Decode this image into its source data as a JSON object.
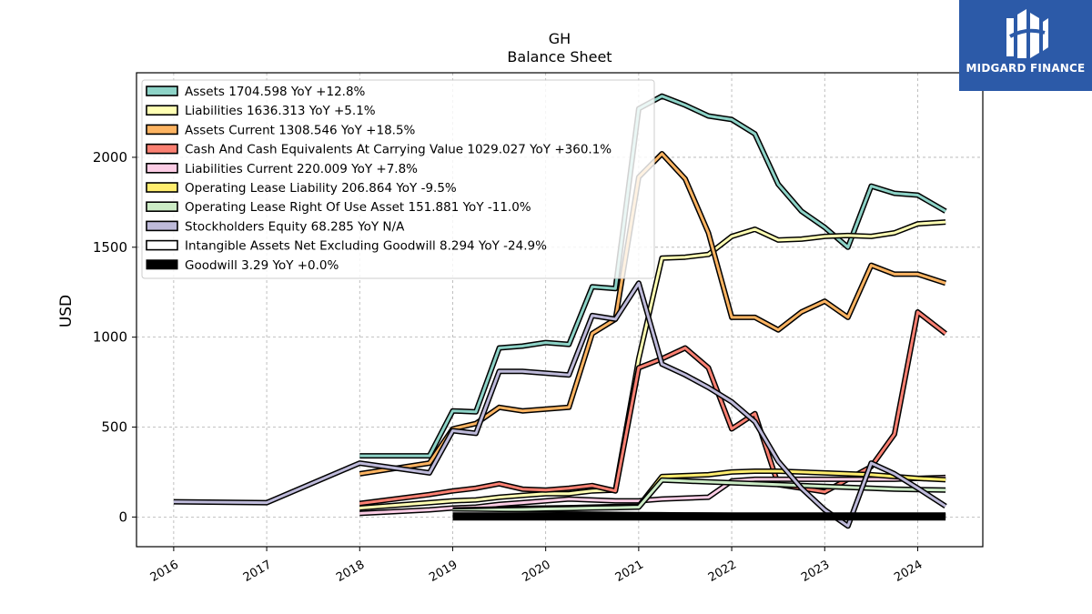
{
  "brand": {
    "name": "MIDGARD FINANCE"
  },
  "chart_data": {
    "type": "line",
    "title": "GH",
    "subtitle": "Balance  Sheet",
    "xlabel": "",
    "ylabel": "USD",
    "xlim": [
      2015.6,
      2024.7
    ],
    "ylim": [
      -165,
      2470
    ],
    "x_ticks": [
      2016,
      2017,
      2018,
      2019,
      2020,
      2021,
      2022,
      2023,
      2024
    ],
    "x_tick_labels": [
      "2016",
      "2017",
      "2018",
      "2019",
      "2020",
      "2021",
      "2022",
      "2023",
      "2024"
    ],
    "y_ticks": [
      0,
      500,
      1000,
      1500,
      2000
    ],
    "y_tick_labels": [
      "0",
      "500",
      "1000",
      "1500",
      "2000"
    ],
    "grid": true,
    "legend_position": "top-left",
    "series": [
      {
        "name": "Assets",
        "legend": "Assets  1704.598 YoY +12.8%",
        "color": "#8dd3c7",
        "width": 3,
        "x": [
          2018.0,
          2018.75,
          2019.0,
          2019.25,
          2019.5,
          2019.75,
          2020.0,
          2020.25,
          2020.5,
          2020.75,
          2021.0,
          2021.25,
          2021.5,
          2021.75,
          2022.0,
          2022.25,
          2022.5,
          2022.75,
          2023.0,
          2023.25,
          2023.5,
          2023.75,
          2024.0,
          2024.3
        ],
        "y": [
          340,
          340,
          590,
          585,
          940,
          950,
          970,
          960,
          1280,
          1270,
          2270,
          2340,
          2290,
          2230,
          2210,
          2130,
          1850,
          1700,
          1610,
          1500,
          1840,
          1800,
          1790,
          1700
        ]
      },
      {
        "name": "Liabilities",
        "legend": "Liabilities  1636.313 YoY +5.1%",
        "color": "#ffffb3",
        "width": 3,
        "x": [
          2018.0,
          2018.75,
          2019.0,
          2019.25,
          2019.5,
          2019.75,
          2020.0,
          2020.25,
          2020.5,
          2020.75,
          2021.0,
          2021.25,
          2021.5,
          2021.75,
          2022.0,
          2022.25,
          2022.5,
          2022.75,
          2023.0,
          2023.25,
          2023.5,
          2023.75,
          2024.0,
          2024.3
        ],
        "y": [
          50,
          80,
          90,
          95,
          110,
          120,
          130,
          130,
          145,
          150,
          880,
          1440,
          1445,
          1460,
          1560,
          1600,
          1540,
          1545,
          1560,
          1565,
          1560,
          1580,
          1630,
          1640
        ]
      },
      {
        "name": "Assets Current",
        "legend": "Assets Current  1308.546 YoY +18.5%",
        "color": "#fdb462",
        "width": 3,
        "x": [
          2018.0,
          2018.75,
          2019.0,
          2019.25,
          2019.5,
          2019.75,
          2020.0,
          2020.25,
          2020.5,
          2020.75,
          2021.0,
          2021.25,
          2021.5,
          2021.75,
          2022.0,
          2022.25,
          2022.5,
          2022.75,
          2023.0,
          2023.25,
          2023.5,
          2023.75,
          2024.0,
          2024.3
        ],
        "y": [
          240,
          300,
          490,
          520,
          610,
          590,
          600,
          610,
          1020,
          1100,
          1890,
          2020,
          1880,
          1580,
          1110,
          1110,
          1040,
          1140,
          1200,
          1110,
          1400,
          1350,
          1350,
          1300
        ]
      },
      {
        "name": "Cash And Cash Equivalents At Carrying Value",
        "legend": "Cash And Cash Equivalents At Carrying Value  1029.027 YoY +360.1%",
        "color": "#fb8072",
        "width": 3,
        "x": [
          2018.0,
          2018.75,
          2019.0,
          2019.25,
          2019.5,
          2019.75,
          2020.0,
          2020.25,
          2020.5,
          2020.75,
          2021.0,
          2021.25,
          2021.5,
          2021.75,
          2022.0,
          2022.25,
          2022.5,
          2022.75,
          2023.0,
          2023.25,
          2023.5,
          2023.75,
          2024.0,
          2024.3
        ],
        "y": [
          75,
          125,
          145,
          160,
          185,
          155,
          150,
          160,
          175,
          145,
          830,
          880,
          940,
          830,
          490,
          575,
          180,
          160,
          140,
          210,
          280,
          460,
          1140,
          1020
        ]
      },
      {
        "name": "Liabilities Current",
        "legend": "Liabilities Current  220.009 YoY +7.8%",
        "color": "#fccde5",
        "width": 3,
        "x": [
          2018.0,
          2018.75,
          2019.0,
          2019.25,
          2019.5,
          2019.75,
          2020.0,
          2020.25,
          2020.5,
          2020.75,
          2021.0,
          2021.25,
          2021.5,
          2021.75,
          2022.0,
          2022.25,
          2022.5,
          2022.75,
          2023.0,
          2023.25,
          2023.5,
          2023.75,
          2024.0,
          2024.3
        ],
        "y": [
          20,
          40,
          50,
          55,
          70,
          80,
          90,
          100,
          95,
          90,
          90,
          100,
          105,
          110,
          200,
          210,
          210,
          210,
          210,
          210,
          210,
          210,
          215,
          220
        ]
      },
      {
        "name": "Operating Lease Liability",
        "legend": "Operating Lease Liability  206.864 YoY -9.5%",
        "color": "#ffed6f",
        "width": 3,
        "x": [
          2019.0,
          2019.25,
          2019.5,
          2019.75,
          2020.0,
          2020.25,
          2020.5,
          2020.75,
          2021.0,
          2021.25,
          2021.5,
          2021.75,
          2022.0,
          2022.25,
          2022.5,
          2022.75,
          2023.0,
          2023.25,
          2023.5,
          2023.75,
          2024.0,
          2024.3
        ],
        "y": [
          40,
          42,
          45,
          48,
          50,
          52,
          55,
          58,
          60,
          225,
          230,
          235,
          250,
          255,
          255,
          250,
          245,
          240,
          235,
          225,
          215,
          207
        ]
      },
      {
        "name": "Operating Lease Right Of Use Asset",
        "legend": "Operating Lease Right Of Use Asset  151.881 YoY -11.0%",
        "color": "#ccebc5",
        "width": 3,
        "x": [
          2019.0,
          2019.25,
          2019.5,
          2019.75,
          2020.0,
          2020.25,
          2020.5,
          2020.75,
          2021.0,
          2021.25,
          2021.5,
          2021.75,
          2022.0,
          2022.25,
          2022.5,
          2022.75,
          2023.0,
          2023.25,
          2023.5,
          2023.75,
          2024.0,
          2024.3
        ],
        "y": [
          35,
          37,
          40,
          42,
          45,
          47,
          50,
          52,
          55,
          205,
          200,
          195,
          190,
          185,
          180,
          175,
          170,
          165,
          160,
          155,
          152,
          150
        ]
      },
      {
        "name": "Stockholders Equity",
        "legend": "Stockholders Equity  68.285 YoY N/A",
        "color": "#bebada",
        "width": 3,
        "x": [
          2016.0,
          2017.0,
          2018.0,
          2018.75,
          2019.0,
          2019.25,
          2019.5,
          2019.75,
          2020.0,
          2020.25,
          2020.5,
          2020.75,
          2021.0,
          2021.25,
          2021.5,
          2021.75,
          2022.0,
          2022.25,
          2022.5,
          2022.75,
          2023.0,
          2023.25,
          2023.5,
          2023.75,
          2024.0,
          2024.3
        ],
        "y": [
          85,
          80,
          300,
          245,
          480,
          465,
          810,
          810,
          800,
          790,
          1120,
          1100,
          1300,
          850,
          790,
          720,
          640,
          530,
          310,
          160,
          40,
          -50,
          300,
          240,
          160,
          60
        ]
      },
      {
        "name": "Intangible Assets Net Excluding Goodwill",
        "legend": "Intangible Assets Net Excluding Goodwill  8.294 YoY -24.9%",
        "color": "#ffffff",
        "width": 2,
        "x": [
          2019.0,
          2019.25,
          2019.5,
          2019.75,
          2020.0,
          2020.25,
          2020.5,
          2020.75,
          2021.0,
          2021.25,
          2021.5,
          2021.75,
          2022.0,
          2022.25,
          2022.5,
          2022.75,
          2023.0,
          2023.25,
          2023.5,
          2023.75,
          2024.0,
          2024.3
        ],
        "y": [
          25,
          24,
          22,
          21,
          20,
          19,
          18,
          17,
          16,
          15,
          14,
          13,
          12,
          12,
          11,
          11,
          10,
          10,
          9,
          9,
          9,
          8
        ]
      },
      {
        "name": "Goodwill",
        "legend": "Goodwill  3.29 YoY +0.0%",
        "color": "#000000",
        "width": 6,
        "x": [
          2019.0,
          2024.3
        ],
        "y": [
          3.29,
          3.29
        ]
      }
    ]
  }
}
